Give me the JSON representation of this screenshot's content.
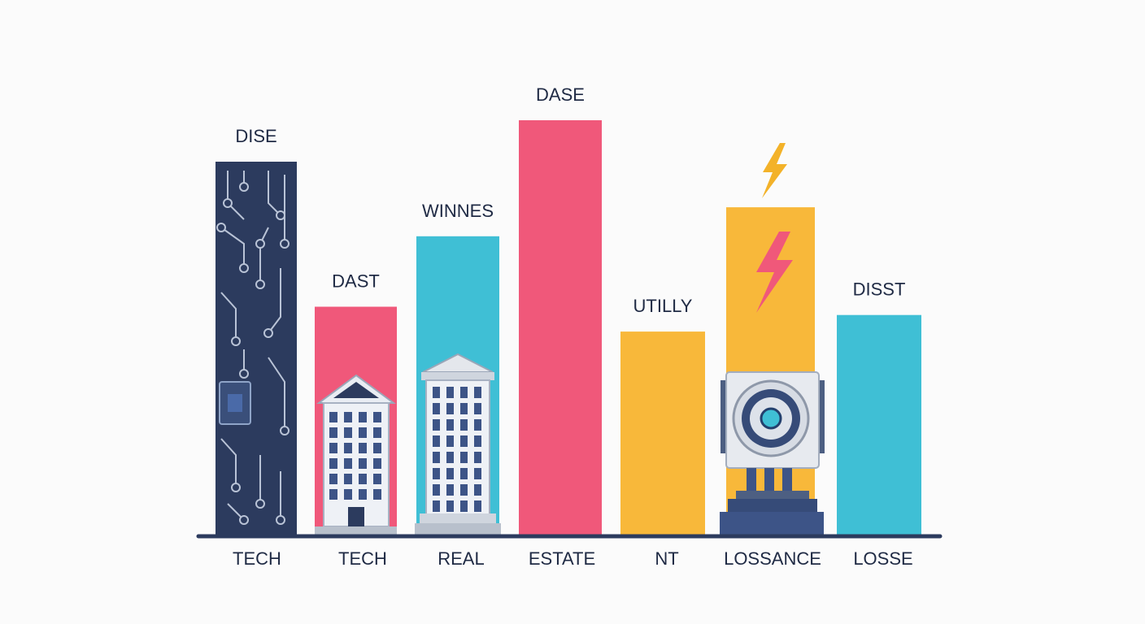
{
  "chart_data": {
    "type": "bar",
    "title": "",
    "xlabel": "",
    "ylabel": "",
    "ylim": [
      0,
      100
    ],
    "categories": [
      "TECH",
      "TECH",
      "REAL",
      "ESTATE",
      "NT",
      "LOSSANCE",
      "LOSSE"
    ],
    "bar_labels": [
      "DISE",
      "DAST",
      "WINNES",
      "DASE",
      "UTILLY",
      "",
      "DISST"
    ],
    "values": [
      90,
      55,
      72,
      100,
      49,
      79,
      53
    ],
    "colors": [
      "#2c3b5e",
      "#f0587a",
      "#3fbfd5",
      "#f0587a",
      "#f8b83a",
      "#f8b83a",
      "#3fbfd5"
    ],
    "icons": [
      "circuit-board-icon",
      "office-building-icon",
      "tower-building-icon",
      "",
      "",
      "power-generator-icon",
      ""
    ],
    "annotation_icon": "lightning-bolt-icon"
  }
}
